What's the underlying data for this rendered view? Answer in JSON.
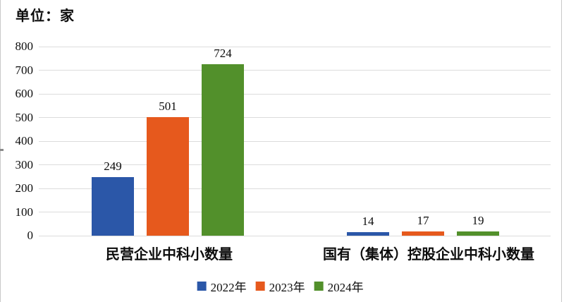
{
  "title": {
    "unit_label": "单位：家"
  },
  "chart_data": {
    "type": "bar",
    "title": "单位：家",
    "categories": [
      "民营企业中科小数量",
      "国有（集体）控股企业中科小数量"
    ],
    "series": [
      {
        "name": "2022年",
        "color": "#2b57a8",
        "values": [
          249,
          14
        ]
      },
      {
        "name": "2023年",
        "color": "#e6591d",
        "values": [
          501,
          17
        ]
      },
      {
        "name": "2024年",
        "color": "#52902b",
        "values": [
          724,
          19
        ]
      }
    ],
    "data_labels": [
      [
        "249",
        "501",
        "724"
      ],
      [
        "14",
        "17",
        "19"
      ]
    ],
    "xlabel": "",
    "ylabel": "",
    "ylim": [
      0,
      800
    ],
    "yticks": [
      "0",
      "100",
      "200",
      "300",
      "400",
      "500",
      "600",
      "700",
      "800"
    ],
    "grid": true,
    "legend_position": "bottom"
  },
  "colors": {
    "background": "#ffffff",
    "gridline": "#dcdcdc",
    "border": "#c9c9c9",
    "text": "#0d0d0d"
  }
}
